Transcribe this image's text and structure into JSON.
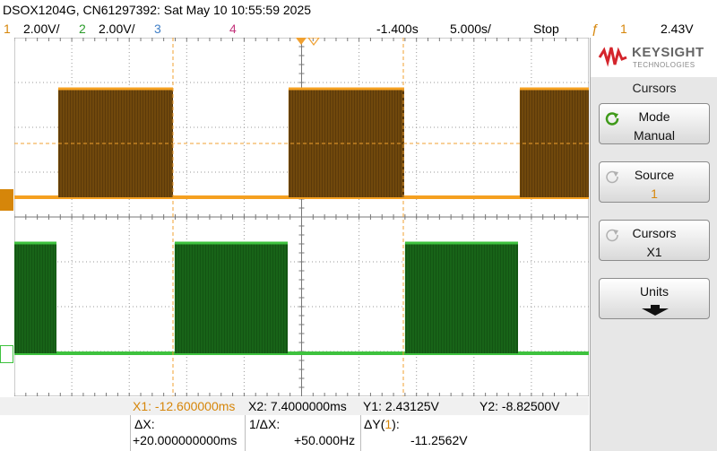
{
  "header": {
    "title": "DSOX1204G, CN61297392: Sat May 10 10:55:59 2025"
  },
  "channels": {
    "ch1": {
      "num": "1",
      "scale": "2.00V/"
    },
    "ch2": {
      "num": "2",
      "scale": "2.00V/"
    },
    "ch3": {
      "num": "3"
    },
    "ch4": {
      "num": "4"
    },
    "delay": "-1.400s",
    "timebase": "5.000s/",
    "run_state": "Stop",
    "trigger_source": "1",
    "trigger_level": "2.43V"
  },
  "markers": {
    "trigger": "T",
    "ch1": "1",
    "ch2": "2"
  },
  "cursors": {
    "x1": "X1: -12.600000ms",
    "x2": "X2:  7.4000000ms",
    "y1": "Y1:  2.43125V",
    "y2": "Y2: -8.82500V",
    "dx_label": "ΔX:",
    "dx_value": "+20.000000000ms",
    "inv_dx_label": "1/ΔX:",
    "inv_dx_value": "+50.000Hz",
    "dy_label_prefix": "ΔY(",
    "dy_label_ch": "1",
    "dy_label_suffix": "):",
    "dy_value": "-11.2562V"
  },
  "menu": {
    "brand": "KEYSIGHT",
    "brand_sub": "TECHNOLOGIES",
    "title": "Cursors",
    "softkeys": [
      {
        "line1": "Mode",
        "line2": "Manual"
      },
      {
        "line1": "Source",
        "line2": "1"
      },
      {
        "line1": "Cursors",
        "line2": "X1"
      },
      {
        "line1": "Units"
      }
    ]
  },
  "colors": {
    "ch1": "#f5a020",
    "ch1_fill": "#5c3a0a",
    "ch2": "#3ec23e",
    "ch2_fill": "#135513",
    "grid": "#9a9a9a",
    "cursor": "#f0a030"
  }
}
